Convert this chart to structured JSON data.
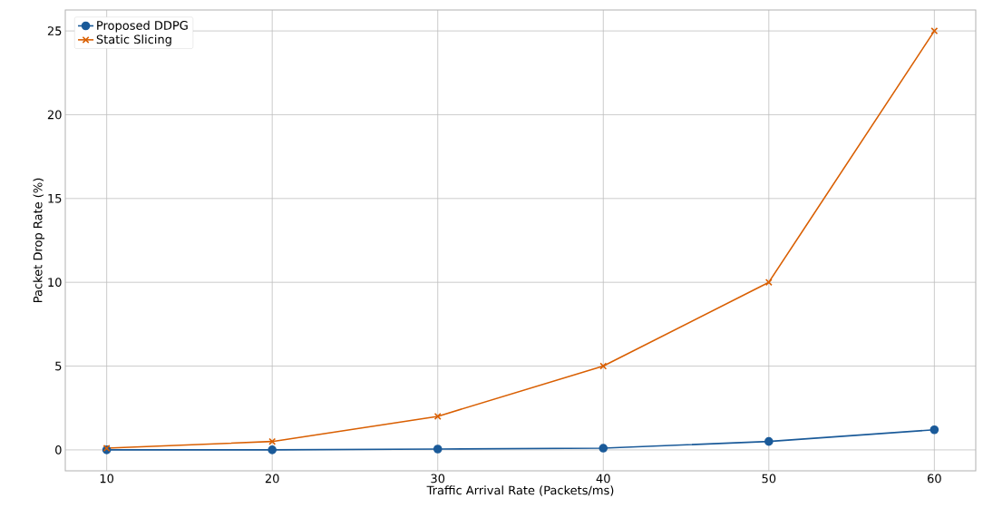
{
  "chart_data": {
    "type": "line",
    "xlabel": "Traffic Arrival Rate (Packets/ms)",
    "ylabel": "Packet Drop Rate (%)",
    "x": [
      10,
      20,
      30,
      40,
      50,
      60
    ],
    "series": [
      {
        "name": "Proposed DDPG",
        "color": "#1a5a99",
        "marker": "circle",
        "values": [
          0.0,
          0.0,
          0.05,
          0.1,
          0.5,
          1.2
        ]
      },
      {
        "name": "Static Slicing",
        "color": "#d95f02",
        "marker": "cross",
        "values": [
          0.1,
          0.5,
          2,
          5,
          10,
          25
        ]
      }
    ],
    "xlim": [
      7.5,
      62.5
    ],
    "ylim": [
      -1.25,
      26.25
    ],
    "xticks": [
      10,
      20,
      30,
      40,
      50,
      60
    ],
    "yticks": [
      0,
      5,
      10,
      15,
      20,
      25
    ],
    "grid": true,
    "legend": "top left",
    "line_style": "solid"
  }
}
